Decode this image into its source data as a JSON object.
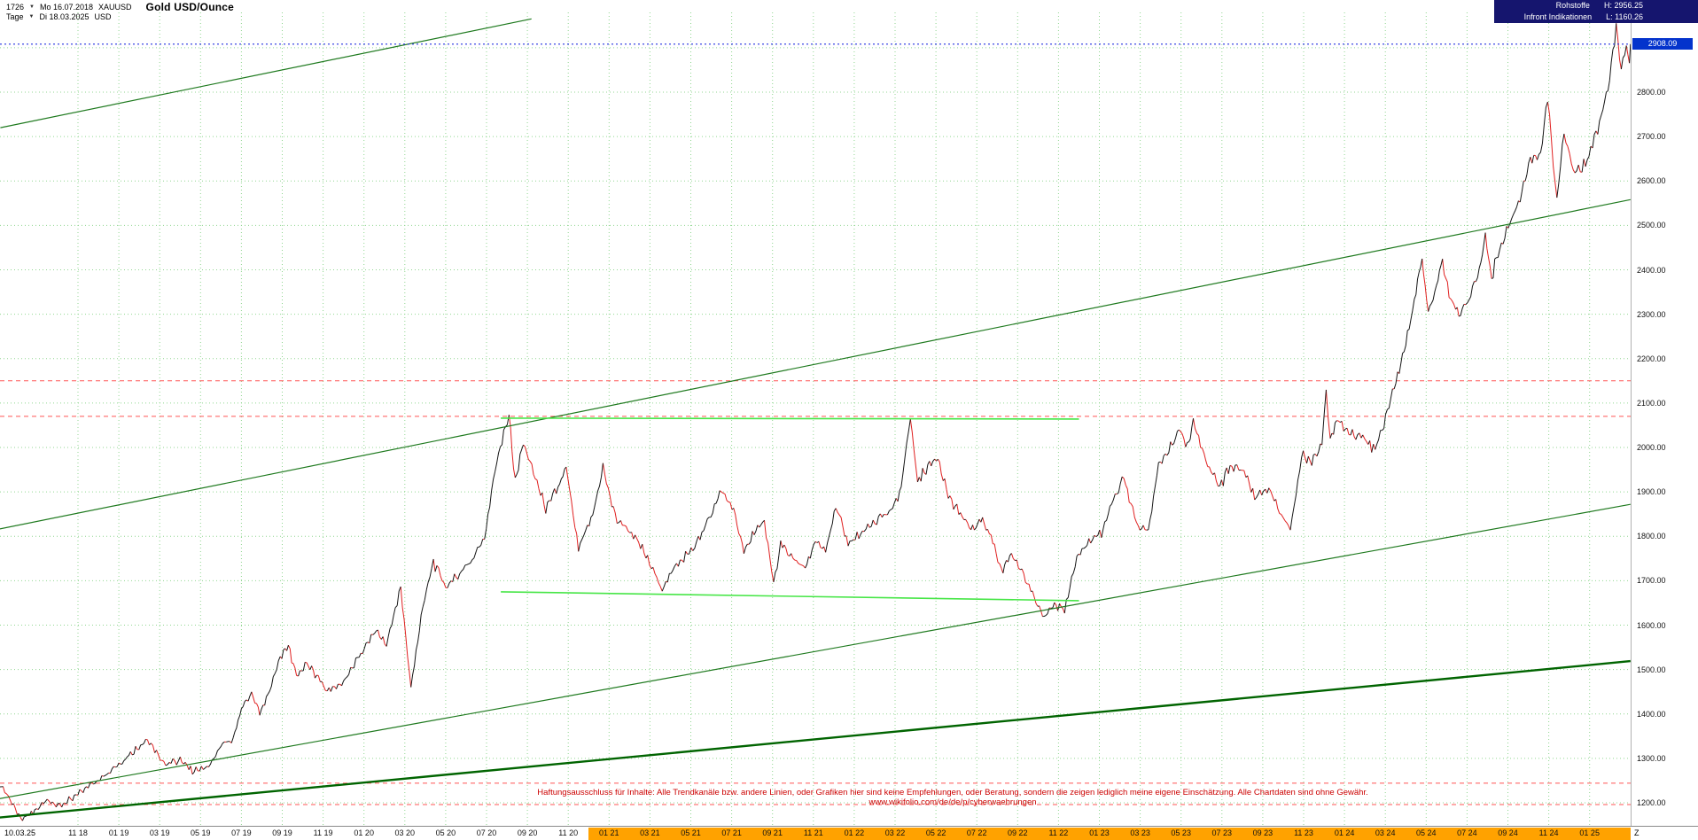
{
  "header": {
    "bar_count": "1726",
    "start_date": "Mo 16.07.2018",
    "symbol": "XAUUSD",
    "title": "Gold USD/Ounce",
    "timeframe": "Tage",
    "current_date": "Di 18.03.2025",
    "currency": "USD",
    "right": {
      "category": "Rohstoffe",
      "high_label": "H: 2956.25",
      "source": "Infront Indikationen",
      "low_label": "L: 1160.26"
    }
  },
  "price_axis": {
    "labels": [
      "2800.00",
      "2700.00",
      "2600.00",
      "2500.00",
      "2400.00",
      "2300.00",
      "2200.00",
      "2100.00",
      "2000.00",
      "1900.00",
      "1800.00",
      "1700.00",
      "1600.00",
      "1500.00",
      "1400.00",
      "1300.00",
      "1200.00"
    ],
    "current_badge": "2908.09"
  },
  "time_axis": {
    "first_label": "10.03.25",
    "labels": [
      "11 18",
      "01 19",
      "03 19",
      "05 19",
      "07 19",
      "09 19",
      "11 19",
      "01 20",
      "03 20",
      "05 20",
      "07 20",
      "09 20",
      "11 20",
      "01 21",
      "03 21",
      "05 21",
      "07 21",
      "09 21",
      "11 21",
      "01 22",
      "03 22",
      "05 22",
      "07 22",
      "09 22",
      "11 22",
      "01 23",
      "03 23",
      "05 23",
      "07 23",
      "09 23",
      "11 23",
      "01 24",
      "03 24",
      "05 24",
      "07 24",
      "09 24",
      "11 24",
      "01 25"
    ],
    "last_label": "Z",
    "highlight_from_label": "01 21"
  },
  "disclaimer": "Haftungsausschluss für Inhalte: Alle Trendkanäle bzw. andere Linien, oder Grafiken hier sind keine Empfehlungen, oder Beratung, sondern die zeigen lediglich meine eigene Einschätzung. Alle Chartdaten sind ohne Gewähr.  www.wikifolio.com/de/de/p/cyberwaehrungen",
  "colors": {
    "header_navy": "#15156e",
    "badge_blue": "#0433cc",
    "grid_green": "#90d690",
    "candle_up": "#151515",
    "candle_down": "#e02020",
    "trend_green": "#1f7a1f",
    "base_trend_green": "#006400",
    "bright_green": "#46e646",
    "level_red": "#ff5555",
    "current_blue": "#2330e0",
    "axis_highlight_orange": "#ffa200",
    "disclaimer_red": "#cc0000"
  },
  "chart_data": {
    "type": "line",
    "title": "Gold USD/Ounce (XAUUSD)",
    "x_unit": "months since 2018-07 (chart range Mo 16.07.2018 - Di 18.03.2025, daily bars)",
    "y_unit": "USD per ounce",
    "ylim": [
      1150,
      2960
    ],
    "current_price": 2908.09,
    "range_high": 2956.25,
    "range_low": 1160.26,
    "y_gridlines": [
      1200,
      1300,
      1400,
      1500,
      1600,
      1700,
      1800,
      1900,
      2000,
      2100,
      2200,
      2300,
      2400,
      2500,
      2600,
      2700,
      2800,
      2900
    ],
    "series": [
      {
        "name": "XAUUSD",
        "points": [
          [
            0,
            1248
          ],
          [
            0.5,
            1222
          ],
          [
            1.2,
            1162
          ],
          [
            1.8,
            1178
          ],
          [
            2.4,
            1205
          ],
          [
            3.2,
            1192
          ],
          [
            4,
            1222
          ],
          [
            5,
            1252
          ],
          [
            6,
            1288
          ],
          [
            6.9,
            1322
          ],
          [
            7.4,
            1344
          ],
          [
            8.2,
            1288
          ],
          [
            9,
            1296
          ],
          [
            9.6,
            1272
          ],
          [
            10.4,
            1281
          ],
          [
            11,
            1330
          ],
          [
            11.6,
            1342
          ],
          [
            12,
            1412
          ],
          [
            12.5,
            1446
          ],
          [
            12.9,
            1402
          ],
          [
            13.3,
            1440
          ],
          [
            13.9,
            1528
          ],
          [
            14.3,
            1552
          ],
          [
            14.7,
            1486
          ],
          [
            15.2,
            1512
          ],
          [
            15.6,
            1492
          ],
          [
            16.2,
            1452
          ],
          [
            17,
            1472
          ],
          [
            17.6,
            1516
          ],
          [
            18.1,
            1552
          ],
          [
            18.6,
            1588
          ],
          [
            19.1,
            1556
          ],
          [
            19.8,
            1684
          ],
          [
            20.3,
            1458
          ],
          [
            20.8,
            1622
          ],
          [
            21.4,
            1742
          ],
          [
            22,
            1686
          ],
          [
            22.6,
            1712
          ],
          [
            23.3,
            1748
          ],
          [
            23.9,
            1800
          ],
          [
            24.5,
            1972
          ],
          [
            25.1,
            2068
          ],
          [
            25.4,
            1926
          ],
          [
            25.8,
            2012
          ],
          [
            26.3,
            1942
          ],
          [
            26.9,
            1862
          ],
          [
            27.5,
            1908
          ],
          [
            27.9,
            1952
          ],
          [
            28.5,
            1772
          ],
          [
            29.2,
            1848
          ],
          [
            29.7,
            1956
          ],
          [
            30.3,
            1844
          ],
          [
            31.1,
            1808
          ],
          [
            31.8,
            1756
          ],
          [
            32.6,
            1682
          ],
          [
            33.3,
            1738
          ],
          [
            34.1,
            1772
          ],
          [
            34.9,
            1838
          ],
          [
            35.5,
            1902
          ],
          [
            36.1,
            1862
          ],
          [
            36.6,
            1762
          ],
          [
            37.1,
            1812
          ],
          [
            37.6,
            1832
          ],
          [
            38.05,
            1692
          ],
          [
            38.4,
            1782
          ],
          [
            39,
            1752
          ],
          [
            39.6,
            1726
          ],
          [
            40.1,
            1788
          ],
          [
            40.6,
            1768
          ],
          [
            41.1,
            1868
          ],
          [
            41.7,
            1782
          ],
          [
            42.4,
            1808
          ],
          [
            43.1,
            1838
          ],
          [
            43.8,
            1852
          ],
          [
            44.3,
            1912
          ],
          [
            44.75,
            2066
          ],
          [
            45.1,
            1922
          ],
          [
            45.6,
            1958
          ],
          [
            46.1,
            1978
          ],
          [
            46.6,
            1892
          ],
          [
            47.2,
            1848
          ],
          [
            47.8,
            1812
          ],
          [
            48.2,
            1842
          ],
          [
            48.7,
            1802
          ],
          [
            49.2,
            1722
          ],
          [
            49.7,
            1762
          ],
          [
            50.3,
            1712
          ],
          [
            50.9,
            1652
          ],
          [
            51.3,
            1618
          ],
          [
            51.8,
            1648
          ],
          [
            52.3,
            1632
          ],
          [
            52.9,
            1758
          ],
          [
            53.4,
            1782
          ],
          [
            54.1,
            1808
          ],
          [
            54.6,
            1872
          ],
          [
            55.2,
            1932
          ],
          [
            55.9,
            1818
          ],
          [
            56.4,
            1812
          ],
          [
            56.9,
            1962
          ],
          [
            57.4,
            1992
          ],
          [
            57.9,
            2042
          ],
          [
            58.3,
            2002
          ],
          [
            58.6,
            2058
          ],
          [
            59.3,
            1958
          ],
          [
            59.9,
            1912
          ],
          [
            60.4,
            1958
          ],
          [
            61,
            1952
          ],
          [
            61.6,
            1888
          ],
          [
            62.3,
            1908
          ],
          [
            62.9,
            1848
          ],
          [
            63.35,
            1812
          ],
          [
            63.9,
            1982
          ],
          [
            64.4,
            1968
          ],
          [
            64.9,
            2008
          ],
          [
            65.1,
            2128
          ],
          [
            65.3,
            2022
          ],
          [
            65.7,
            2062
          ],
          [
            66.3,
            2032
          ],
          [
            66.9,
            2028
          ],
          [
            67.5,
            1992
          ],
          [
            68.1,
            2082
          ],
          [
            68.6,
            2162
          ],
          [
            69,
            2232
          ],
          [
            69.5,
            2352
          ],
          [
            69.8,
            2428
          ],
          [
            70.1,
            2302
          ],
          [
            70.5,
            2362
          ],
          [
            70.8,
            2422
          ],
          [
            71.2,
            2332
          ],
          [
            71.6,
            2302
          ],
          [
            72.1,
            2332
          ],
          [
            72.6,
            2402
          ],
          [
            72.9,
            2478
          ],
          [
            73.2,
            2382
          ],
          [
            73.6,
            2452
          ],
          [
            74.1,
            2502
          ],
          [
            74.6,
            2562
          ],
          [
            75.1,
            2652
          ],
          [
            75.6,
            2662
          ],
          [
            75.95,
            2788
          ],
          [
            76.4,
            2562
          ],
          [
            76.75,
            2712
          ],
          [
            77.2,
            2622
          ],
          [
            77.8,
            2632
          ],
          [
            78.4,
            2718
          ],
          [
            78.9,
            2802
          ],
          [
            79.3,
            2948
          ],
          [
            79.55,
            2846
          ],
          [
            79.8,
            2902
          ],
          [
            79.95,
            2862
          ],
          [
            80,
            2908.09
          ]
        ]
      }
    ],
    "trend_lines": [
      {
        "name": "upper-channel-line",
        "from": [
          0.2,
          2720
        ],
        "to": [
          26.2,
          2965
        ],
        "color": "#1f7a1f",
        "width": 1.2
      },
      {
        "name": "mid-channel-line",
        "from": [
          0,
          1815
        ],
        "to": [
          80,
          2558
        ],
        "color": "#1f7a1f",
        "width": 1.2
      },
      {
        "name": "lower-channel-line",
        "from": [
          0,
          1208
        ],
        "to": [
          80,
          1872
        ],
        "color": "#1f7a1f",
        "width": 1.2
      },
      {
        "name": "base-trend-line",
        "from": [
          0,
          1166
        ],
        "to": [
          80,
          1519
        ],
        "color": "#006400",
        "width": 2.4
      }
    ],
    "resistance_lines": [
      {
        "name": "horizontal-resistance-2066",
        "from": [
          24.7,
          2066
        ],
        "to": [
          53,
          2064
        ],
        "color": "#46e646",
        "width": 1.6
      },
      {
        "name": "horizontal-support-1675",
        "from": [
          24.7,
          1675
        ],
        "to": [
          53,
          1655
        ],
        "color": "#46e646",
        "width": 1.6
      }
    ],
    "level_lines": [
      {
        "price": 2150
      },
      {
        "price": 2070
      },
      {
        "price": 1244
      },
      {
        "price": 1196
      }
    ]
  }
}
